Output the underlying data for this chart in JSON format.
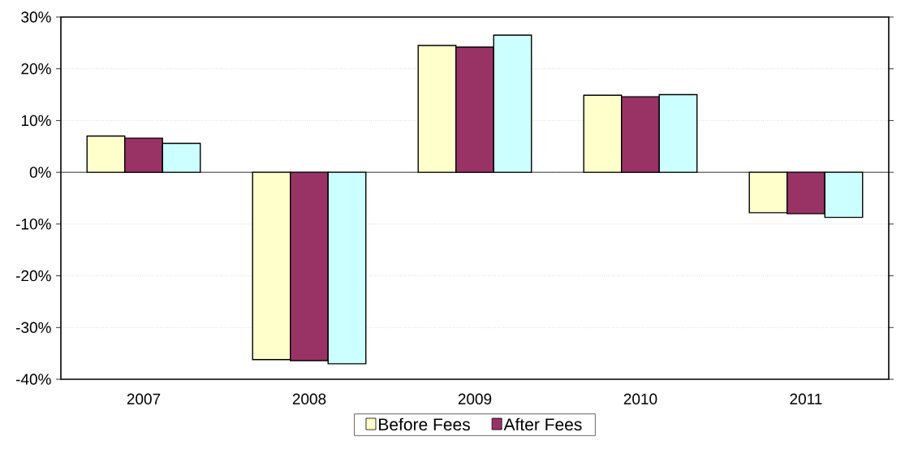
{
  "chart_data": {
    "type": "bar",
    "categories": [
      "2007",
      "2008",
      "2009",
      "2010",
      "2011"
    ],
    "series": [
      {
        "name": "Before Fees",
        "color": "#ffffcc",
        "values": [
          7.0,
          -36.2,
          24.5,
          14.9,
          -7.8
        ]
      },
      {
        "name": "After Fees",
        "color": "#993366",
        "values": [
          6.6,
          -36.4,
          24.2,
          14.6,
          -8.0
        ]
      },
      {
        "color": "#ccffff",
        "values": [
          5.6,
          -37.0,
          26.5,
          15.0,
          -8.7
        ]
      }
    ],
    "ylim": [
      -40,
      30
    ],
    "yticks": [
      {
        "value": -40,
        "label": "-40%"
      },
      {
        "value": -30,
        "label": "-30%"
      },
      {
        "value": -20,
        "label": "-20%"
      },
      {
        "value": -10,
        "label": "-10%"
      },
      {
        "value": 0,
        "label": "0%"
      },
      {
        "value": 10,
        "label": "10%"
      },
      {
        "value": 20,
        "label": "20%"
      },
      {
        "value": 30,
        "label": "30%"
      }
    ],
    "grid": "y",
    "legend": "bottom"
  }
}
